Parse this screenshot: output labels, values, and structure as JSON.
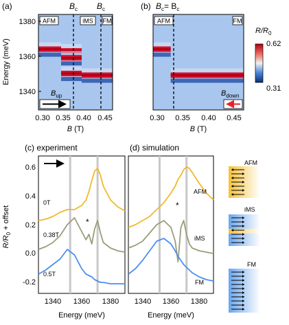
{
  "colors": {
    "afm": "#f2b827",
    "ims": "#9a9c7a",
    "fm": "#4a8ef2",
    "arrow_up": "#000000",
    "arrow_down": "#e8222a",
    "grey_line": "#c8c8c8"
  },
  "panels": {
    "a": {
      "label": "(a)"
    },
    "b": {
      "label": "(b)"
    },
    "c": {
      "label": "(c) experiment"
    },
    "d": {
      "label": "(d) simulation"
    }
  },
  "colorbar": {
    "title": "R/R",
    "sub": "0",
    "max_label": "0.62",
    "min_label": "0.31",
    "min": 0.31,
    "max": 0.62
  },
  "top_axes": {
    "ylabel": "Energy (meV)",
    "xlabel_a": "B (T)",
    "xlabel_b": "B (T)",
    "yticks": [
      "1380",
      "1360",
      "1340"
    ],
    "xticks_a": [
      "0.30",
      "0.35",
      "0.40",
      "0.45"
    ],
    "xticks_b": [
      "0.30",
      "0.35",
      "0.40",
      "0.45"
    ],
    "phase_a": [
      "AFM",
      "iMS",
      "FM"
    ],
    "phase_b": [
      "AFM",
      "FM"
    ],
    "bc_a": [
      "B",
      "B"
    ],
    "bc_a_sub": [
      "c",
      "c"
    ],
    "bc_b": "B",
    "bc_b_sub": "c",
    "bc_b_eq": "= B",
    "bc_b_sub2": "c",
    "bup": "B",
    "bup_sub": "up",
    "bdown": "B",
    "bdown_sub": "down"
  },
  "bottom_axes": {
    "ylabel": "R/R",
    "ylabel_sub": "0",
    "ylabel_rest": " + offset",
    "xlabel_c": "Energy (meV)",
    "xlabel_d": "Energy (meV)",
    "yticks": [
      "0.6",
      "0.4",
      "0.2",
      "0.0",
      "-0.2"
    ],
    "xticks_c": [
      "1340",
      "1360",
      "1380"
    ],
    "xticks_d": [
      "1340",
      "1360",
      "1380"
    ],
    "c_labels": [
      "0T",
      "0.38T",
      "0.5T"
    ],
    "d_labels": [
      "AFM",
      "iMS",
      "FM"
    ],
    "star": "*"
  },
  "spin_diagrams": {
    "labels": [
      "AFM",
      "iMS",
      "FM"
    ]
  },
  "chart_data": [
    {
      "type": "heatmap",
      "panel": "a",
      "xlabel": "B (T)",
      "ylabel": "Energy (meV)",
      "xlim": [
        0.3,
        0.48
      ],
      "ylim": [
        1330,
        1385
      ],
      "phase_boundaries": [
        0.355,
        0.405
      ],
      "resonances": [
        {
          "field": [
            0.3,
            0.355
          ],
          "energy": 1365
        },
        {
          "field": [
            0.355,
            0.405
          ],
          "energy": 1364
        },
        {
          "field": [
            0.355,
            0.405
          ],
          "energy": 1360
        },
        {
          "field": [
            0.355,
            0.405
          ],
          "energy": 1351
        },
        {
          "field": [
            0.405,
            0.48
          ],
          "energy": 1350
        }
      ]
    },
    {
      "type": "heatmap",
      "panel": "b",
      "xlabel": "B (T)",
      "ylabel": "Energy (meV)",
      "xlim": [
        0.3,
        0.48
      ],
      "ylim": [
        1330,
        1385
      ],
      "phase_boundaries": [
        0.335
      ],
      "resonances": [
        {
          "field": [
            0.3,
            0.335
          ],
          "energy": 1365
        },
        {
          "field": [
            0.335,
            0.48
          ],
          "energy": 1350
        }
      ]
    },
    {
      "type": "line",
      "panel": "c",
      "xlabel": "Energy (meV)",
      "ylabel": "R/R0 + offset",
      "xlim": [
        1325,
        1385
      ],
      "ylim": [
        -0.28,
        0.72
      ],
      "x": [
        1325,
        1330,
        1335,
        1340,
        1345,
        1350,
        1355,
        1358,
        1360,
        1362,
        1364,
        1366,
        1368,
        1370,
        1375,
        1380,
        1385
      ],
      "series": [
        {
          "name": "0T",
          "values": [
            0.25,
            0.26,
            0.28,
            0.31,
            0.33,
            0.33,
            0.36,
            0.4,
            0.46,
            0.54,
            0.61,
            0.63,
            0.58,
            0.5,
            0.4,
            0.35,
            0.32
          ]
        },
        {
          "name": "0.38T",
          "values": [
            0.04,
            0.06,
            0.09,
            0.14,
            0.22,
            0.27,
            0.17,
            0.11,
            0.15,
            0.08,
            0.19,
            0.25,
            0.16,
            0.09,
            0.05,
            0.03,
            0.02
          ]
        },
        {
          "name": "0.5T",
          "values": [
            -0.14,
            -0.11,
            -0.07,
            -0.03,
            0.04,
            0.0,
            -0.1,
            -0.14,
            -0.15,
            -0.16,
            -0.18,
            -0.19,
            -0.2,
            -0.2,
            -0.21,
            -0.21,
            -0.21
          ]
        }
      ],
      "vlines": [
        1347,
        1366
      ]
    },
    {
      "type": "line",
      "panel": "d",
      "xlabel": "Energy (meV)",
      "xlim": [
        1325,
        1385
      ],
      "x": [
        1325,
        1330,
        1335,
        1340,
        1345,
        1350,
        1355,
        1358,
        1360,
        1362,
        1364,
        1366,
        1368,
        1370,
        1375,
        1380,
        1385
      ],
      "series": [
        {
          "name": "AFM",
          "values": [
            0.2,
            0.22,
            0.25,
            0.28,
            0.33,
            0.38,
            0.45,
            0.5,
            0.55,
            0.58,
            0.62,
            0.64,
            0.63,
            0.6,
            0.52,
            0.45,
            0.4
          ]
        },
        {
          "name": "iMS",
          "values": [
            0.05,
            0.07,
            0.1,
            0.16,
            0.22,
            0.25,
            0.2,
            0.1,
            -0.05,
            0.2,
            0.25,
            0.15,
            0.08,
            0.05,
            0.03,
            0.02,
            0.01
          ]
        },
        {
          "name": "FM",
          "values": [
            -0.14,
            -0.1,
            -0.04,
            0.03,
            0.1,
            0.12,
            0.08,
            0.03,
            -0.01,
            -0.04,
            -0.07,
            -0.09,
            -0.11,
            -0.13,
            -0.16,
            -0.18,
            -0.19
          ]
        }
      ],
      "vlines": [
        1347,
        1366
      ]
    }
  ]
}
